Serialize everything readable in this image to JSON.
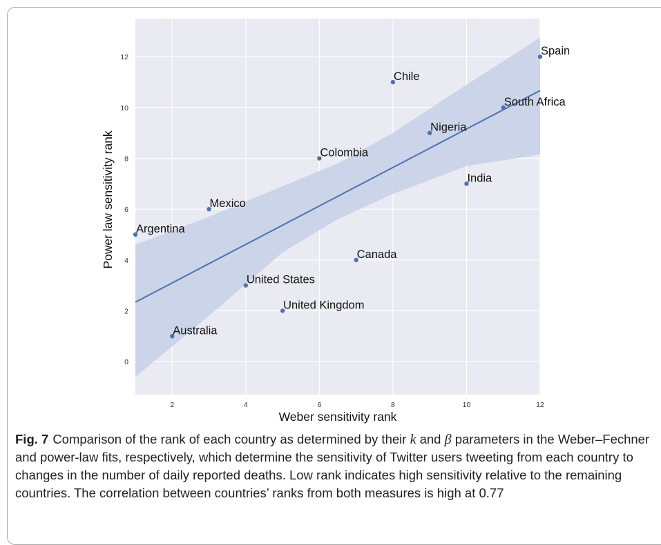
{
  "chart_data": {
    "type": "scatter",
    "xlabel": "Weber sensitivity rank",
    "ylabel": "Power law sensitivity rank",
    "xlim": [
      1,
      12
    ],
    "ylim": [
      -1.3,
      13.5
    ],
    "xticks": [
      2,
      4,
      6,
      8,
      10,
      12
    ],
    "yticks": [
      0,
      2,
      4,
      6,
      8,
      10,
      12
    ],
    "grid": true,
    "points": [
      {
        "label": "Spain",
        "x": 12,
        "y": 12
      },
      {
        "label": "Chile",
        "x": 8,
        "y": 11
      },
      {
        "label": "South Africa",
        "x": 11,
        "y": 10
      },
      {
        "label": "Nigeria",
        "x": 9,
        "y": 9
      },
      {
        "label": "Colombia",
        "x": 6,
        "y": 8
      },
      {
        "label": "India",
        "x": 10,
        "y": 7
      },
      {
        "label": "Mexico",
        "x": 3,
        "y": 6
      },
      {
        "label": "Argentina",
        "x": 1,
        "y": 5
      },
      {
        "label": "Canada",
        "x": 7,
        "y": 4
      },
      {
        "label": "United States",
        "x": 4,
        "y": 3
      },
      {
        "label": "United Kingdom",
        "x": 5,
        "y": 2
      },
      {
        "label": "Australia",
        "x": 2,
        "y": 1
      }
    ],
    "regression": {
      "x": [
        1,
        12
      ],
      "y": [
        2.34,
        10.67
      ]
    },
    "confidence_band": {
      "x": [
        1,
        3,
        5,
        6.5,
        8,
        10,
        12
      ],
      "upper": [
        4.6,
        5.7,
        6.9,
        7.8,
        9.0,
        10.9,
        12.75
      ],
      "lower": [
        -0.6,
        1.8,
        4.3,
        5.6,
        6.6,
        7.7,
        8.15
      ]
    },
    "colors": {
      "point": "#4c72b0",
      "line": "#4c72b0",
      "band": "#c5d0e6",
      "plot_bg": "#eaeaf2",
      "grid": "#ffffff"
    }
  },
  "caption": {
    "figure_label": "Fig. 7",
    "text_before_k": "Comparison of the rank of each country as determined by their ",
    "k_symbol": "k",
    "text_and": " and ",
    "beta_symbol": "β",
    "text_after_beta": " parameters in the Weber–Fechner and power-law fits, respectively, which determine the sensitivity of Twitter users tweeting from each country to changes in the number of daily reported deaths. Low rank indicates high sensitivity relative to the remaining countries. The correlation between countries’ ranks from both measures is high at 0.77"
  }
}
